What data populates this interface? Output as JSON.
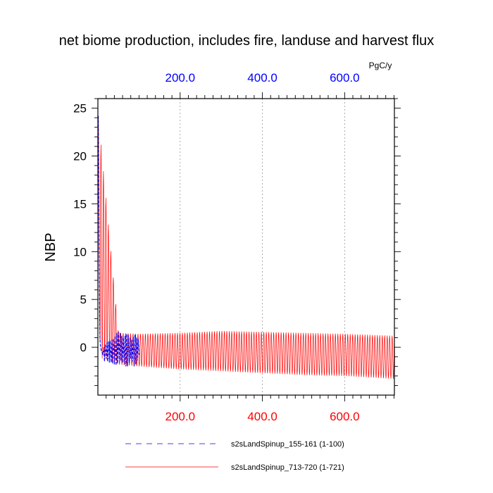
{
  "chart_data": {
    "type": "line",
    "title": "net biome production, includes fire, landuse and harvest flux",
    "units": "PgC/y",
    "ylabel": "NBP",
    "xlabel": "",
    "xlim": [
      0,
      721
    ],
    "ylim": [
      -5,
      26
    ],
    "grid": "vertical-dotted",
    "x_ticks_bottom": [
      "200.0",
      "400.0",
      "600.0"
    ],
    "x_ticks_top": [
      "200.0",
      "400.0",
      "600.0"
    ],
    "x_tick_values": [
      200,
      400,
      600
    ],
    "y_ticks": [
      "25",
      "20",
      "15",
      "10",
      "5",
      "0"
    ],
    "y_tick_values": [
      25,
      20,
      15,
      10,
      5,
      0
    ],
    "top_axis_color": "#0000ff",
    "bottom_axis_color": "#ff0000",
    "legend_position": "bottom",
    "series": [
      {
        "name": "s2sLandSpinup_155-161 (1-100)",
        "color": "#0000ff",
        "style": "dashed",
        "x_range": [
          1,
          100
        ],
        "values": [
          [
            1,
            24.2
          ],
          [
            2,
            18.0
          ],
          [
            3,
            10.5
          ],
          [
            4,
            4.5
          ],
          [
            5,
            1.0
          ],
          [
            6,
            0.2
          ],
          [
            8,
            -0.3
          ],
          [
            10,
            -0.5
          ],
          [
            12,
            -0.8
          ],
          [
            14,
            0.0
          ],
          [
            16,
            -1.5
          ],
          [
            18,
            0.3
          ],
          [
            20,
            -1.2
          ],
          [
            22,
            0.5
          ],
          [
            24,
            -1.5
          ],
          [
            26,
            0.6
          ],
          [
            28,
            -1.6
          ],
          [
            30,
            0.7
          ],
          [
            32,
            -1.6
          ],
          [
            34,
            0.8
          ],
          [
            36,
            -1.7
          ],
          [
            38,
            0.9
          ],
          [
            40,
            -1.8
          ],
          [
            42,
            1.2
          ],
          [
            44,
            -1.9
          ],
          [
            46,
            1.5
          ],
          [
            48,
            -1.7
          ],
          [
            50,
            1.6
          ],
          [
            52,
            -1.3
          ],
          [
            54,
            1.5
          ],
          [
            56,
            -1.4
          ],
          [
            58,
            1.2
          ],
          [
            60,
            -1.6
          ],
          [
            62,
            1.0
          ],
          [
            64,
            -1.8
          ],
          [
            66,
            1.2
          ],
          [
            68,
            -2.0
          ],
          [
            70,
            1.4
          ],
          [
            72,
            -2.0
          ],
          [
            74,
            1.3
          ],
          [
            76,
            -1.6
          ],
          [
            78,
            1.0
          ],
          [
            80,
            -1.2
          ],
          [
            82,
            0.8
          ],
          [
            84,
            -1.5
          ],
          [
            86,
            1.1
          ],
          [
            88,
            -2.0
          ],
          [
            90,
            1.3
          ],
          [
            92,
            -1.8
          ],
          [
            94,
            1.0
          ],
          [
            96,
            -1.4
          ],
          [
            98,
            0.9
          ],
          [
            100,
            -0.8
          ]
        ]
      },
      {
        "name": "s2sLandSpinup_713-720 (1-721)",
        "color": "#ff0000",
        "style": "solid",
        "x_range": [
          1,
          721
        ],
        "envelope": {
          "x": [
            1,
            50,
            100,
            200,
            300,
            400,
            500,
            600,
            721
          ],
          "upper": [
            24.2,
            1.5,
            1.4,
            1.5,
            1.7,
            1.6,
            1.5,
            1.4,
            1.2
          ],
          "lower": [
            -1.0,
            -1.8,
            -2.0,
            -2.3,
            -2.5,
            -2.7,
            -2.9,
            -3.0,
            -3.3
          ]
        },
        "oscillation_period": 6
      }
    ]
  }
}
